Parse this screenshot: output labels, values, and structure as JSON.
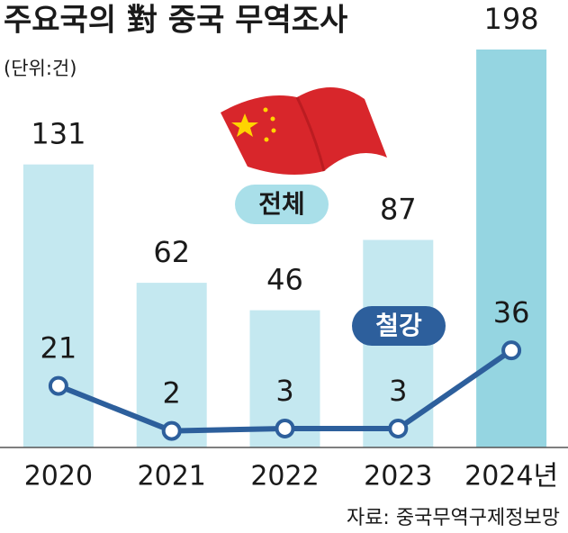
{
  "chart_data": {
    "type": "bar-line",
    "title": "주요국의 對 중국 무역조사",
    "subtitle": "(단위:건)",
    "source": "자료: 중국무역구제정보망",
    "categories": [
      "2020",
      "2021",
      "2022",
      "2023",
      "2024년"
    ],
    "series": [
      {
        "name": "전체",
        "type": "bar",
        "color": "#c4e8f0",
        "colors": [
          "#c4e8f0",
          "#c4e8f0",
          "#c4e8f0",
          "#c4e8f0",
          "#95d5e1"
        ],
        "values": [
          131,
          62,
          46,
          87,
          198
        ]
      },
      {
        "name": "철강",
        "type": "line",
        "axis": "y2",
        "color": "#2d5f9c",
        "values": [
          21,
          2,
          3,
          3,
          36
        ]
      }
    ],
    "ylim": [
      -34,
      198
    ],
    "y2lim": [
      -5,
      163
    ]
  }
}
